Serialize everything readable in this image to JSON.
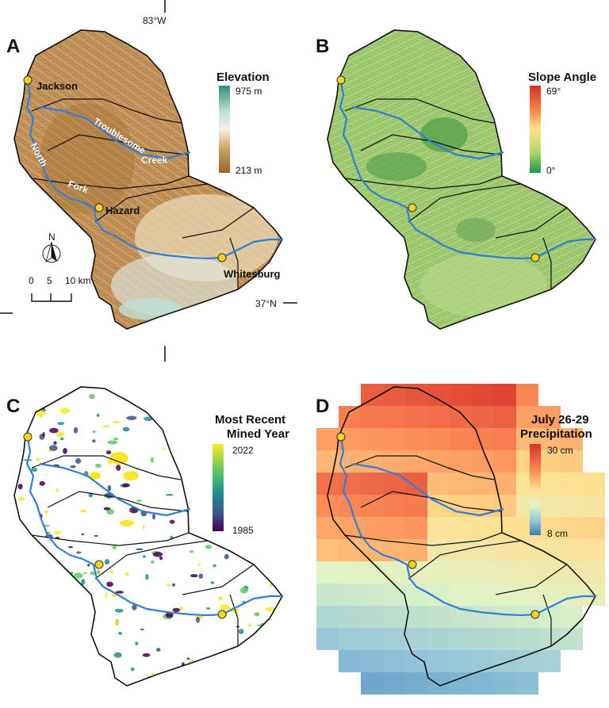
{
  "coordinates": {
    "lon_label": "83°W",
    "lat_label": "37°N"
  },
  "panels": {
    "A": {
      "letter": "A",
      "legend_title": "Elevation",
      "legend_max": "975 m",
      "legend_min": "213 m",
      "legend_colors": [
        "#2a8f7a",
        "#bfe0d8",
        "#f3efe4",
        "#c99a5c",
        "#9b6426"
      ],
      "cities": [
        "Jackson",
        "Hazard",
        "Whitesburg"
      ],
      "river_labels": [
        "Troublesome",
        "Creek",
        "North",
        "Fork"
      ],
      "north_label": "N",
      "scale_ticks": [
        "0",
        "5",
        "10 km"
      ]
    },
    "B": {
      "letter": "B",
      "legend_title": "Slope Angle",
      "legend_max": "69°",
      "legend_min": "0°",
      "legend_colors": [
        "#d62f27",
        "#f68d45",
        "#fee08b",
        "#b7d96a",
        "#1a9850"
      ]
    },
    "C": {
      "letter": "C",
      "legend_title_line1": "Most Recent",
      "legend_title_line2": "Mined Year",
      "legend_max": "2022",
      "legend_min": "1985",
      "legend_colors": [
        "#fde725",
        "#5ec962",
        "#21918c",
        "#3b528b",
        "#440154"
      ]
    },
    "D": {
      "letter": "D",
      "legend_title_line1": "July 26-29",
      "legend_title_line2": "Precipitation",
      "legend_max": "30 cm",
      "legend_min": "8 cm",
      "legend_colors": [
        "#d73027",
        "#fc8d59",
        "#fee090",
        "#e0f3c8",
        "#91c4d8",
        "#3a7fb8"
      ]
    }
  },
  "colors": {
    "river": "#2f7fd8",
    "boundary": "#111111",
    "town_marker": "#f5d21e"
  }
}
